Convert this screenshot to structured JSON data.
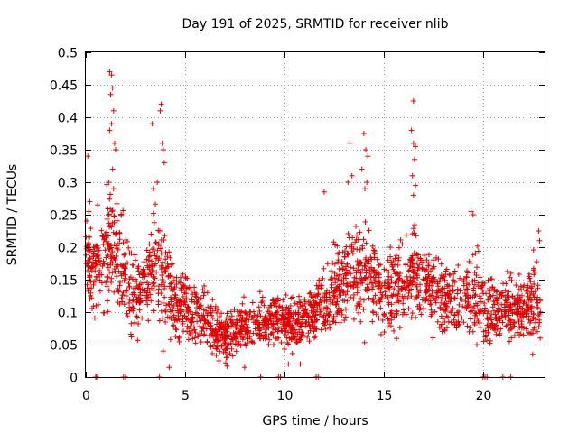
{
  "chart_data": {
    "type": "scatter",
    "title": "Day 191 of 2025, SRMTID for receiver nlib",
    "xlabel": "GPS time / hours",
    "ylabel": "SRMTID / TECUs",
    "xlim": [
      0,
      23.1
    ],
    "ylim": [
      0,
      0.5
    ],
    "x_ticks": [
      0,
      5,
      10,
      15,
      20
    ],
    "x_tick_labels": [
      "0",
      "5",
      "10",
      "15",
      "20"
    ],
    "y_ticks": [
      0,
      0.05,
      0.1,
      0.15,
      0.2,
      0.25,
      0.3,
      0.35,
      0.4,
      0.45,
      0.5
    ],
    "y_tick_labels": [
      "0",
      "0.05",
      "0.1",
      "0.15",
      "0.2",
      "0.25",
      "0.3",
      "0.35",
      "0.4",
      "0.45",
      "0.5"
    ],
    "grid": true,
    "marker": "+",
    "marker_color": "#e00000",
    "series": [
      {
        "name": "SRMTID",
        "envelope_hours": [
          0,
          0.5,
          1,
          1.5,
          2,
          2.5,
          3,
          3.5,
          4,
          4.5,
          5,
          5.5,
          6,
          6.5,
          7,
          7.5,
          8,
          8.5,
          9,
          9.5,
          10,
          10.5,
          11,
          11.5,
          12,
          12.5,
          13,
          13.5,
          14,
          14.5,
          15,
          15.5,
          16,
          16.5,
          17,
          17.5,
          18,
          18.5,
          19,
          19.5,
          20,
          20.5,
          21,
          21.5,
          22,
          22.5,
          22.9
        ],
        "median_values": [
          0.18,
          0.17,
          0.19,
          0.2,
          0.15,
          0.13,
          0.14,
          0.17,
          0.15,
          0.11,
          0.11,
          0.1,
          0.09,
          0.07,
          0.065,
          0.07,
          0.08,
          0.08,
          0.085,
          0.09,
          0.085,
          0.08,
          0.09,
          0.1,
          0.11,
          0.13,
          0.15,
          0.16,
          0.16,
          0.15,
          0.13,
          0.14,
          0.15,
          0.16,
          0.15,
          0.13,
          0.13,
          0.12,
          0.12,
          0.13,
          0.11,
          0.1,
          0.11,
          0.1,
          0.11,
          0.12,
          0.1
        ],
        "spread": [
          0.05,
          0.05,
          0.06,
          0.07,
          0.06,
          0.05,
          0.05,
          0.06,
          0.05,
          0.04,
          0.04,
          0.04,
          0.035,
          0.03,
          0.03,
          0.03,
          0.03,
          0.03,
          0.03,
          0.03,
          0.03,
          0.03,
          0.03,
          0.035,
          0.04,
          0.05,
          0.06,
          0.06,
          0.06,
          0.05,
          0.05,
          0.05,
          0.05,
          0.06,
          0.05,
          0.05,
          0.05,
          0.05,
          0.05,
          0.05,
          0.05,
          0.04,
          0.04,
          0.04,
          0.04,
          0.05,
          0.05
        ],
        "spikes": [
          {
            "x": 1.2,
            "y": 0.47
          },
          {
            "x": 1.3,
            "y": 0.465
          },
          {
            "x": 1.35,
            "y": 0.445
          },
          {
            "x": 1.25,
            "y": 0.435
          },
          {
            "x": 1.4,
            "y": 0.41
          },
          {
            "x": 1.3,
            "y": 0.39
          },
          {
            "x": 1.45,
            "y": 0.36
          },
          {
            "x": 1.2,
            "y": 0.38
          },
          {
            "x": 1.5,
            "y": 0.35
          },
          {
            "x": 1.35,
            "y": 0.32
          },
          {
            "x": 1.15,
            "y": 0.3
          },
          {
            "x": 1.4,
            "y": 0.29
          },
          {
            "x": 0.1,
            "y": 0.34
          },
          {
            "x": 0.2,
            "y": 0.27
          },
          {
            "x": 0.15,
            "y": 0.255
          },
          {
            "x": 0.6,
            "y": 0.265
          },
          {
            "x": 3.35,
            "y": 0.39
          },
          {
            "x": 3.8,
            "y": 0.42
          },
          {
            "x": 3.75,
            "y": 0.41
          },
          {
            "x": 3.85,
            "y": 0.36
          },
          {
            "x": 3.9,
            "y": 0.35
          },
          {
            "x": 3.95,
            "y": 0.33
          },
          {
            "x": 3.6,
            "y": 0.3
          },
          {
            "x": 3.4,
            "y": 0.29
          },
          {
            "x": 12.0,
            "y": 0.285
          },
          {
            "x": 13.3,
            "y": 0.36
          },
          {
            "x": 13.4,
            "y": 0.31
          },
          {
            "x": 13.2,
            "y": 0.3
          },
          {
            "x": 14.0,
            "y": 0.375
          },
          {
            "x": 14.1,
            "y": 0.35
          },
          {
            "x": 14.2,
            "y": 0.34
          },
          {
            "x": 14.15,
            "y": 0.3
          },
          {
            "x": 14.05,
            "y": 0.29
          },
          {
            "x": 13.9,
            "y": 0.32
          },
          {
            "x": 16.5,
            "y": 0.425
          },
          {
            "x": 16.4,
            "y": 0.38
          },
          {
            "x": 16.5,
            "y": 0.36
          },
          {
            "x": 16.6,
            "y": 0.355
          },
          {
            "x": 16.55,
            "y": 0.335
          },
          {
            "x": 16.45,
            "y": 0.31
          },
          {
            "x": 16.6,
            "y": 0.295
          },
          {
            "x": 16.5,
            "y": 0.28
          },
          {
            "x": 19.4,
            "y": 0.255
          },
          {
            "x": 19.5,
            "y": 0.25
          },
          {
            "x": 22.8,
            "y": 0.225
          },
          {
            "x": 22.85,
            "y": 0.21
          },
          {
            "x": 3.9,
            "y": 0.04
          },
          {
            "x": 4.2,
            "y": 0.015
          },
          {
            "x": 6.7,
            "y": 0.025
          },
          {
            "x": 7.1,
            "y": 0.03
          },
          {
            "x": 8.0,
            "y": 0.015
          },
          {
            "x": 10.2,
            "y": 0.02
          },
          {
            "x": 10.8,
            "y": 0.02
          },
          {
            "x": 22.5,
            "y": 0.035
          }
        ],
        "zero_points_hours": [
          0.5,
          0.55,
          1.9,
          2.0,
          3.7,
          8.8,
          9.7,
          9.8,
          11.6,
          11.7,
          20.0,
          20.1,
          20.2,
          21.0,
          21.4
        ]
      }
    ]
  }
}
